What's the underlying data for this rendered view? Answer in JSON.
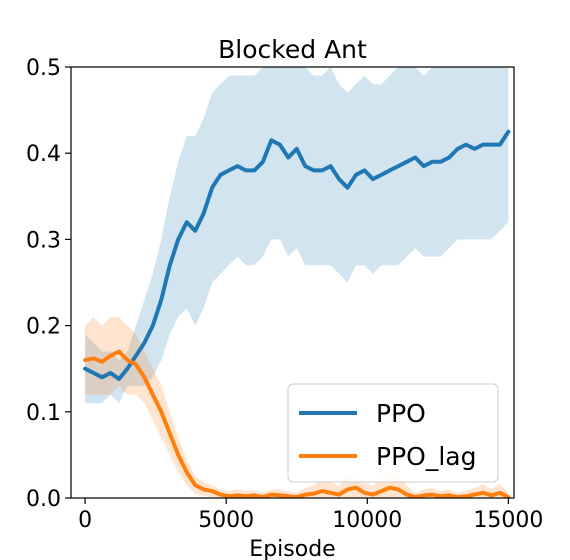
{
  "chart_data": {
    "type": "line",
    "title": "Blocked Ant",
    "xlabel": "Episode",
    "ylabel": "",
    "xlim": [
      -500,
      15200
    ],
    "ylim": [
      0,
      0.5
    ],
    "xticks": [
      0,
      5000,
      10000,
      15000
    ],
    "xtick_labels": [
      "0",
      "5000",
      "10000",
      "15000"
    ],
    "yticks": [
      0.0,
      0.1,
      0.2,
      0.3,
      0.4,
      0.5
    ],
    "ytick_labels": [
      "0.0",
      "0.1",
      "0.2",
      "0.3",
      "0.4",
      "0.5"
    ],
    "grid": false,
    "legend_position": "bottom-right",
    "series": [
      {
        "name": "PPO",
        "color": "#1f77b4",
        "band_color": "#1f77b4",
        "x": [
          0,
          300,
          600,
          900,
          1200,
          1500,
          1800,
          2100,
          2400,
          2700,
          3000,
          3300,
          3600,
          3900,
          4200,
          4500,
          4800,
          5100,
          5400,
          5700,
          6000,
          6300,
          6600,
          6900,
          7200,
          7500,
          7800,
          8100,
          8400,
          8700,
          9000,
          9300,
          9600,
          9900,
          10200,
          10500,
          10800,
          11100,
          11400,
          11700,
          12000,
          12300,
          12600,
          12900,
          13200,
          13500,
          13800,
          14100,
          14400,
          14700,
          15000
        ],
        "values": [
          0.15,
          0.145,
          0.14,
          0.145,
          0.138,
          0.15,
          0.165,
          0.18,
          0.2,
          0.23,
          0.27,
          0.3,
          0.32,
          0.31,
          0.33,
          0.36,
          0.375,
          0.38,
          0.385,
          0.38,
          0.38,
          0.39,
          0.415,
          0.41,
          0.395,
          0.405,
          0.385,
          0.38,
          0.38,
          0.385,
          0.37,
          0.36,
          0.375,
          0.38,
          0.37,
          0.375,
          0.38,
          0.385,
          0.39,
          0.395,
          0.385,
          0.39,
          0.39,
          0.395,
          0.405,
          0.41,
          0.405,
          0.41,
          0.41,
          0.41,
          0.425
        ],
        "upper": [
          0.19,
          0.18,
          0.17,
          0.17,
          0.16,
          0.17,
          0.2,
          0.23,
          0.26,
          0.3,
          0.35,
          0.39,
          0.42,
          0.42,
          0.44,
          0.47,
          0.48,
          0.49,
          0.49,
          0.49,
          0.49,
          0.5,
          0.52,
          0.52,
          0.51,
          0.52,
          0.5,
          0.49,
          0.49,
          0.5,
          0.48,
          0.47,
          0.48,
          0.49,
          0.48,
          0.48,
          0.49,
          0.5,
          0.5,
          0.5,
          0.49,
          0.5,
          0.5,
          0.5,
          0.51,
          0.52,
          0.51,
          0.52,
          0.52,
          0.52,
          0.52
        ],
        "lower": [
          0.11,
          0.11,
          0.11,
          0.12,
          0.11,
          0.13,
          0.13,
          0.13,
          0.14,
          0.16,
          0.19,
          0.21,
          0.22,
          0.2,
          0.22,
          0.25,
          0.26,
          0.27,
          0.28,
          0.27,
          0.27,
          0.28,
          0.3,
          0.3,
          0.28,
          0.29,
          0.27,
          0.27,
          0.27,
          0.27,
          0.26,
          0.25,
          0.27,
          0.27,
          0.26,
          0.27,
          0.27,
          0.27,
          0.28,
          0.29,
          0.28,
          0.28,
          0.28,
          0.29,
          0.3,
          0.3,
          0.3,
          0.3,
          0.3,
          0.31,
          0.32
        ]
      },
      {
        "name": "PPO_lag",
        "color": "#ff7f0e",
        "band_color": "#ff7f0e",
        "x": [
          0,
          300,
          600,
          900,
          1200,
          1500,
          1800,
          2100,
          2400,
          2700,
          3000,
          3300,
          3600,
          3900,
          4200,
          4500,
          4800,
          5100,
          5400,
          5700,
          6000,
          6300,
          6600,
          6900,
          7200,
          7500,
          7800,
          8100,
          8400,
          8700,
          9000,
          9300,
          9600,
          9900,
          10200,
          10500,
          10800,
          11100,
          11400,
          11700,
          12000,
          12300,
          12600,
          12900,
          13200,
          13500,
          13800,
          14100,
          14400,
          14700,
          15000
        ],
        "values": [
          0.16,
          0.162,
          0.158,
          0.165,
          0.17,
          0.16,
          0.155,
          0.14,
          0.12,
          0.1,
          0.075,
          0.05,
          0.03,
          0.015,
          0.01,
          0.008,
          0.004,
          0.002,
          0.003,
          0.002,
          0.003,
          0.001,
          0.004,
          0.003,
          0.002,
          0.001,
          0.004,
          0.005,
          0.008,
          0.006,
          0.004,
          0.01,
          0.012,
          0.006,
          0.004,
          0.008,
          0.012,
          0.01,
          0.004,
          0.001,
          0.003,
          0.004,
          0.002,
          0.003,
          0.001,
          0.002,
          0.004,
          0.006,
          0.003,
          0.006,
          0.001
        ],
        "upper": [
          0.2,
          0.21,
          0.2,
          0.21,
          0.21,
          0.2,
          0.19,
          0.17,
          0.15,
          0.13,
          0.1,
          0.07,
          0.045,
          0.025,
          0.018,
          0.015,
          0.01,
          0.008,
          0.01,
          0.008,
          0.009,
          0.006,
          0.01,
          0.01,
          0.008,
          0.006,
          0.012,
          0.015,
          0.02,
          0.018,
          0.014,
          0.025,
          0.03,
          0.018,
          0.014,
          0.022,
          0.03,
          0.026,
          0.014,
          0.006,
          0.01,
          0.012,
          0.008,
          0.01,
          0.006,
          0.008,
          0.012,
          0.016,
          0.01,
          0.016,
          0.006
        ],
        "lower": [
          0.12,
          0.12,
          0.12,
          0.12,
          0.13,
          0.12,
          0.12,
          0.11,
          0.09,
          0.07,
          0.05,
          0.03,
          0.015,
          0.005,
          0.002,
          0.001,
          0,
          0,
          0,
          0,
          0,
          0,
          0,
          0,
          0,
          0,
          0,
          0,
          0,
          0,
          0,
          0,
          0,
          0,
          0,
          0,
          0,
          0,
          0,
          0,
          0,
          0,
          0,
          0,
          0,
          0,
          0,
          0,
          0,
          0,
          0
        ]
      }
    ]
  }
}
